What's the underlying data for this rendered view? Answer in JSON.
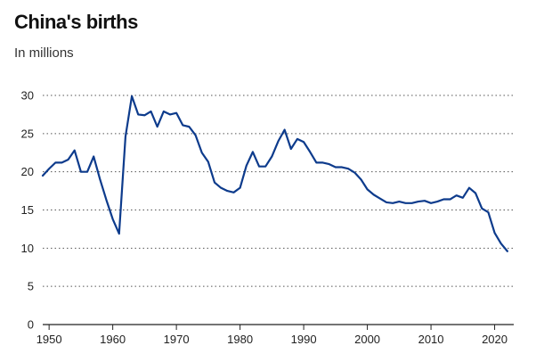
{
  "chart_data": {
    "type": "line",
    "title": "China's births",
    "subtitle": "In millions",
    "xlabel": "",
    "ylabel": "",
    "xlim": [
      1949,
      2023
    ],
    "ylim": [
      0,
      30
    ],
    "yticks": [
      0,
      5,
      10,
      15,
      20,
      25,
      30
    ],
    "xticks": [
      1950,
      1960,
      1970,
      1980,
      1990,
      2000,
      2010,
      2020
    ],
    "grid": true,
    "colors": {
      "line": "#0d3b8c"
    },
    "series": [
      {
        "x": [
          1949,
          1950,
          1951,
          1952,
          1953,
          1954,
          1955,
          1956,
          1957,
          1958,
          1959,
          1960,
          1961,
          1962,
          1963,
          1964,
          1965,
          1966,
          1967,
          1968,
          1969,
          1970,
          1971,
          1972,
          1973,
          1974,
          1975,
          1976,
          1977,
          1978,
          1979,
          1980,
          1981,
          1982,
          1983,
          1984,
          1985,
          1986,
          1987,
          1988,
          1989,
          1990,
          1991,
          1992,
          1993,
          1994,
          1995,
          1996,
          1997,
          1998,
          1999,
          2000,
          2001,
          2002,
          2003,
          2004,
          2005,
          2006,
          2007,
          2008,
          2009,
          2010,
          2011,
          2012,
          2013,
          2014,
          2015,
          2016,
          2017,
          2018,
          2019,
          2020,
          2021,
          2022
        ],
        "values": [
          19.5,
          20.4,
          21.2,
          21.2,
          21.6,
          22.8,
          20.0,
          20.0,
          22.0,
          19.0,
          16.3,
          13.8,
          11.9,
          24.6,
          29.9,
          27.5,
          27.4,
          27.9,
          25.9,
          27.9,
          27.5,
          27.7,
          26.1,
          25.9,
          24.8,
          22.5,
          21.3,
          18.6,
          17.9,
          17.5,
          17.3,
          17.9,
          20.8,
          22.6,
          20.7,
          20.7,
          22.0,
          24.0,
          25.5,
          23.0,
          24.3,
          23.9,
          22.6,
          21.2,
          21.2,
          21.0,
          20.6,
          20.6,
          20.4,
          19.9,
          19.0,
          17.7,
          17.0,
          16.5,
          16.0,
          15.9,
          16.1,
          15.9,
          15.9,
          16.1,
          16.2,
          15.9,
          16.1,
          16.4,
          16.4,
          16.9,
          16.6,
          17.9,
          17.2,
          15.2,
          14.7,
          12.0,
          10.6,
          9.6
        ]
      }
    ]
  }
}
